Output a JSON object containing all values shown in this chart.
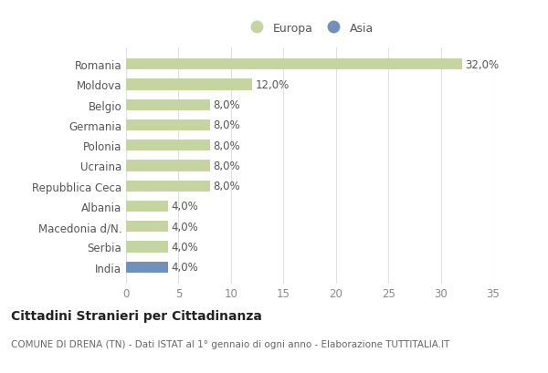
{
  "categories": [
    "Romania",
    "Moldova",
    "Belgio",
    "Germania",
    "Polonia",
    "Ucraina",
    "Repubblica Ceca",
    "Albania",
    "Macedonia d/N.",
    "Serbia",
    "India"
  ],
  "values": [
    32.0,
    12.0,
    8.0,
    8.0,
    8.0,
    8.0,
    8.0,
    4.0,
    4.0,
    4.0,
    4.0
  ],
  "bar_colors": [
    "#c5d4a0",
    "#c5d4a0",
    "#c5d4a0",
    "#c5d4a0",
    "#c5d4a0",
    "#c5d4a0",
    "#c5d4a0",
    "#c5d4a0",
    "#c5d4a0",
    "#c5d4a0",
    "#7091bb"
  ],
  "europa_color": "#c5d4a0",
  "asia_color": "#7091bb",
  "legend_labels": [
    "Europa",
    "Asia"
  ],
  "title": "Cittadini Stranieri per Cittadinanza",
  "subtitle": "COMUNE DI DRENA (TN) - Dati ISTAT al 1° gennaio di ogni anno - Elaborazione TUTTITALIA.IT",
  "xlim": [
    0,
    35
  ],
  "xticks": [
    0,
    5,
    10,
    15,
    20,
    25,
    30,
    35
  ],
  "background_color": "#ffffff",
  "grid_color": "#e0e0e0",
  "title_fontsize": 10,
  "subtitle_fontsize": 7.5,
  "label_fontsize": 8.5,
  "tick_fontsize": 8.5,
  "legend_fontsize": 9
}
